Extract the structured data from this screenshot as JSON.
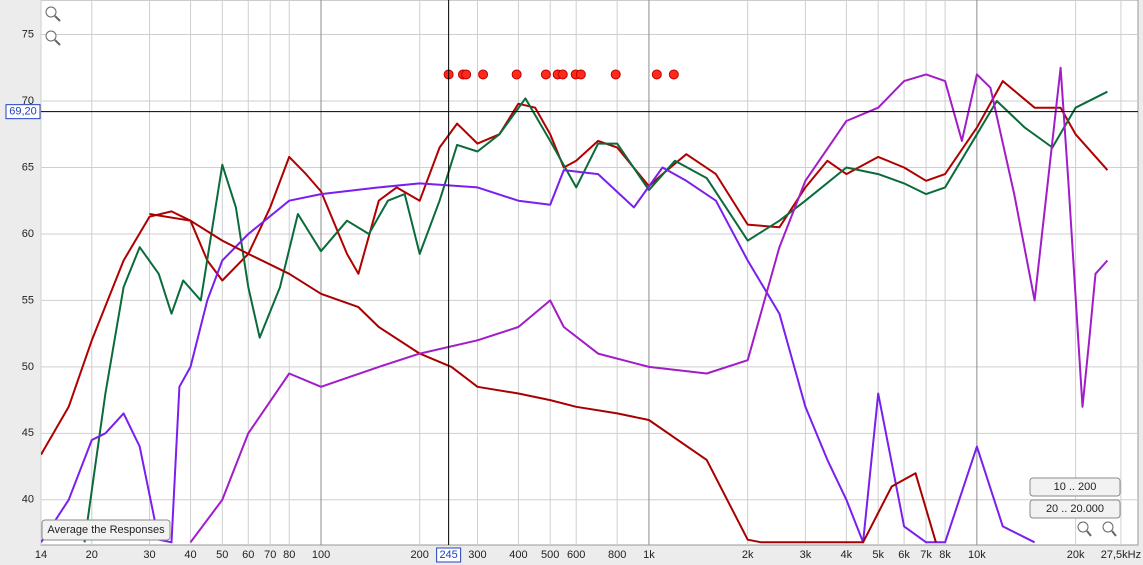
{
  "chart_data": {
    "type": "line",
    "xscale": "log",
    "xlim": [
      14,
      31000
    ],
    "ylim": [
      36.6,
      77.6
    ],
    "xticks": [
      14,
      20,
      30,
      40,
      50,
      60,
      70,
      80,
      100,
      200,
      300,
      400,
      500,
      600,
      800,
      {
        "value": 1000,
        "label": "1k"
      },
      {
        "value": 2000,
        "label": "2k"
      },
      {
        "value": 3000,
        "label": "3k"
      },
      {
        "value": 4000,
        "label": "4k"
      },
      {
        "value": 5000,
        "label": "5k"
      },
      {
        "value": 6000,
        "label": "6k"
      },
      {
        "value": 7000,
        "label": "7k"
      },
      {
        "value": 8000,
        "label": "8k"
      },
      {
        "value": 10000,
        "label": "10k"
      },
      {
        "value": 20000,
        "label": "20k"
      },
      {
        "value": 27500,
        "label": "27,5kHz"
      }
    ],
    "yticks": [
      40,
      45,
      50,
      55,
      60,
      65,
      70,
      75
    ],
    "grid": true,
    "cursor": {
      "x": 245,
      "y": {
        "value": 69.2,
        "label": "69,20"
      }
    },
    "series": [
      {
        "color": "#b00000",
        "x": [
          14,
          17,
          20,
          25,
          30,
          35,
          40,
          45,
          50,
          60,
          70,
          80,
          90,
          100,
          120,
          130,
          150,
          170,
          200,
          230,
          260,
          300,
          350,
          400,
          450,
          500,
          550,
          600,
          700,
          800,
          1000,
          1100,
          1300,
          1600,
          2000,
          2500,
          3000,
          3500,
          4000,
          5000,
          6000,
          7000,
          8000,
          10000,
          12000,
          15000,
          18000,
          20000,
          25000
        ],
        "values": [
          43.4,
          47,
          52,
          58,
          61.3,
          61.7,
          61,
          58,
          56.5,
          58.5,
          62,
          65.8,
          64.5,
          63.2,
          58.5,
          57,
          62.5,
          63.5,
          62.5,
          66.5,
          68.3,
          66.8,
          67.5,
          69.8,
          69.5,
          67.5,
          65,
          65.5,
          67,
          66.5,
          63.6,
          64.5,
          66,
          64.5,
          60.7,
          60.5,
          63.5,
          65.5,
          64.5,
          65.8,
          65,
          64,
          64.5,
          68,
          71.5,
          69.5,
          69.5,
          67.5,
          64.8
        ]
      },
      {
        "color": "#0b6b3a",
        "x": [
          19,
          22,
          25,
          28,
          32,
          35,
          38,
          43,
          50,
          55,
          60,
          65,
          75,
          85,
          100,
          120,
          140,
          160,
          180,
          200,
          230,
          260,
          300,
          350,
          420,
          500,
          600,
          700,
          800,
          1000,
          1200,
          1500,
          2000,
          2500,
          3000,
          4000,
          5000,
          6000,
          7000,
          8000,
          10000,
          11500,
          14000,
          17000,
          20000,
          25000
        ],
        "values": [
          36.8,
          48,
          56,
          59,
          57,
          54,
          56.5,
          55,
          65.2,
          62,
          56,
          52.2,
          56,
          61.5,
          58.7,
          61,
          60,
          62.5,
          63,
          58.5,
          62.5,
          66.7,
          66.2,
          67.5,
          70.2,
          67,
          63.5,
          66.8,
          66.8,
          63.3,
          65.5,
          64.2,
          59.5,
          61,
          62.5,
          65,
          64.5,
          63.8,
          63,
          63.5,
          67.5,
          70,
          68,
          66.5,
          69.5,
          70.7
        ]
      },
      {
        "color": "#7a1fee",
        "x": [
          14,
          17,
          20,
          22,
          25,
          28,
          32,
          35,
          37,
          40,
          45,
          50,
          60,
          80,
          100,
          150,
          200,
          300,
          400,
          500,
          550,
          700,
          900,
          1100,
          1300,
          1600,
          2000,
          2500,
          3000,
          3500,
          4000,
          4500,
          5000,
          6000,
          7000,
          8000,
          10000,
          12000,
          15000
        ],
        "values": [
          36.8,
          40,
          44.5,
          45,
          46.5,
          44,
          37,
          36.8,
          48.5,
          50,
          55,
          58,
          60,
          62.5,
          63,
          63.5,
          63.8,
          63.5,
          62.5,
          62.2,
          64.8,
          64.5,
          62,
          65,
          64,
          62.5,
          58,
          54,
          47,
          43,
          40,
          36.8,
          48,
          38,
          36.8,
          36.8,
          44,
          38,
          36.8
        ]
      },
      {
        "color": "#a80000",
        "x": [
          30,
          40,
          50,
          60,
          80,
          100,
          130,
          150,
          200,
          250,
          300,
          400,
          500,
          600,
          800,
          1000,
          1500,
          2000,
          2200,
          4500,
          5500,
          6500,
          7500
        ],
        "values": [
          61.5,
          61,
          59.5,
          58.5,
          57,
          55.5,
          54.5,
          53,
          51,
          50,
          48.5,
          48,
          47.5,
          47,
          46.5,
          46,
          43,
          37,
          36.8,
          36.8,
          41,
          42,
          36.8
        ]
      },
      {
        "color": "#a21cc8",
        "x": [
          40,
          50,
          60,
          80,
          100,
          150,
          200,
          300,
          400,
          500,
          550,
          700,
          1000,
          1500,
          2000,
          2500,
          3000,
          4000,
          5000,
          6000,
          7000,
          8000,
          9000,
          10000,
          11000,
          13000,
          15000,
          18000,
          19000,
          21000,
          22000,
          23000,
          25000
        ],
        "values": [
          36.8,
          40,
          45,
          49.5,
          48.5,
          50,
          51,
          52,
          53,
          55,
          53,
          51,
          50,
          49.5,
          50.5,
          59,
          64,
          68.5,
          69.5,
          71.5,
          72,
          71.5,
          67,
          72,
          71,
          63,
          55,
          72.5,
          64,
          47,
          52,
          57,
          58
        ]
      }
    ],
    "markers": {
      "color": "#ff2a1a",
      "x": [
        245,
        271,
        277,
        312,
        395,
        485,
        527,
        546,
        598,
        620,
        792,
        1057,
        1191
      ],
      "values": [
        72,
        72,
        72,
        72,
        72,
        72,
        72,
        72,
        72,
        72,
        72,
        72,
        72
      ]
    },
    "buttons": [
      "Average the Responses",
      "10 .. 200",
      "20 .. 20.000"
    ]
  }
}
